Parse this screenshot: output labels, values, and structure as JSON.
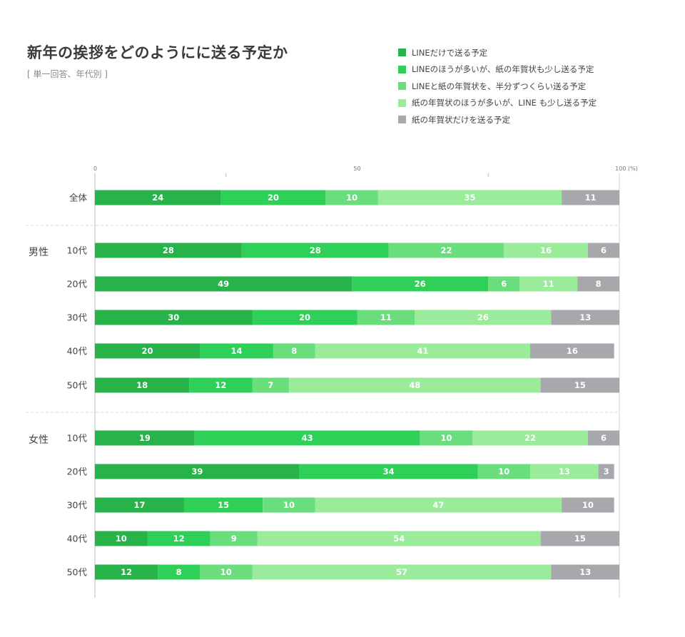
{
  "header": {
    "title": "新年の挨拶をどのようにに送る予定か",
    "subtitle": "[ 単一回答、年代別 ]"
  },
  "chart_data": {
    "type": "bar",
    "orientation": "horizontal",
    "stacked": true,
    "title": "新年の挨拶をどのようにに送る予定か",
    "subtitle": "[ 単一回答、年代別 ]",
    "xlim": [
      0,
      100
    ],
    "x_ticks": [
      "0",
      "50",
      "100 (%)"
    ],
    "legend_position": "top-right",
    "grid": false,
    "series": [
      {
        "name": "LINEだけで送る予定",
        "color": "#27b24a"
      },
      {
        "name": "LINEのほうが多いが、紙の年賀状も少し送る予定",
        "color": "#2fd058"
      },
      {
        "name": "LINEと紙の年賀状を、半分ずつくらい送る予定",
        "color": "#6ade7c"
      },
      {
        "name": "紙の年賀状のほうが多いが、LINE も少し送る予定",
        "color": "#9aeb9a"
      },
      {
        "name": "紙の年賀状だけを送る予定",
        "color": "#a7a8ac"
      }
    ],
    "groups": [
      {
        "label": "",
        "rows": [
          {
            "label": "全体",
            "values": [
              24,
              20,
              10,
              35,
              11
            ]
          }
        ]
      },
      {
        "label": "男性",
        "rows": [
          {
            "label": "10代",
            "values": [
              28,
              28,
              22,
              16,
              6
            ]
          },
          {
            "label": "20代",
            "values": [
              49,
              26,
              6,
              11,
              8
            ]
          },
          {
            "label": "30代",
            "values": [
              30,
              20,
              11,
              26,
              13
            ]
          },
          {
            "label": "40代",
            "values": [
              20,
              14,
              8,
              41,
              16
            ]
          },
          {
            "label": "50代",
            "values": [
              18,
              12,
              7,
              48,
              15
            ]
          }
        ]
      },
      {
        "label": "女性",
        "rows": [
          {
            "label": "10代",
            "values": [
              19,
              43,
              10,
              22,
              6
            ]
          },
          {
            "label": "20代",
            "values": [
              39,
              34,
              10,
              13,
              3
            ]
          },
          {
            "label": "30代",
            "values": [
              17,
              15,
              10,
              47,
              10
            ]
          },
          {
            "label": "40代",
            "values": [
              10,
              12,
              9,
              54,
              15
            ]
          },
          {
            "label": "50代",
            "values": [
              12,
              8,
              10,
              57,
              13
            ]
          }
        ]
      }
    ]
  }
}
